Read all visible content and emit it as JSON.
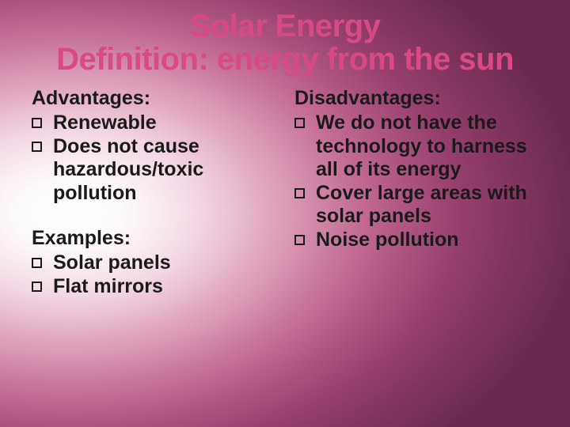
{
  "title": {
    "line1": "Solar Energy",
    "line2": "Definition: energy from the sun",
    "color": "#d94a84",
    "fontsize": 40
  },
  "body_text_color": "#1a1a1a",
  "body_fontsize": 25,
  "left": {
    "section1_heading": "Advantages:",
    "section1_items": [
      "Renewable",
      "Does not cause hazardous/toxic pollution"
    ],
    "section2_heading": "Examples:",
    "section2_items": [
      "Solar panels",
      "Flat mirrors"
    ]
  },
  "right": {
    "section1_heading": "Disadvantages:",
    "section1_items": [
      "We do not have the technology to harness all of its energy",
      "Cover large areas with solar panels",
      "Noise pollution"
    ]
  },
  "background": {
    "gradient_stops": [
      "#ffffff",
      "#fdfafc",
      "#f2d8e4",
      "#dfa3bc",
      "#c26a92",
      "#973f6d",
      "#6a2a4f"
    ]
  }
}
